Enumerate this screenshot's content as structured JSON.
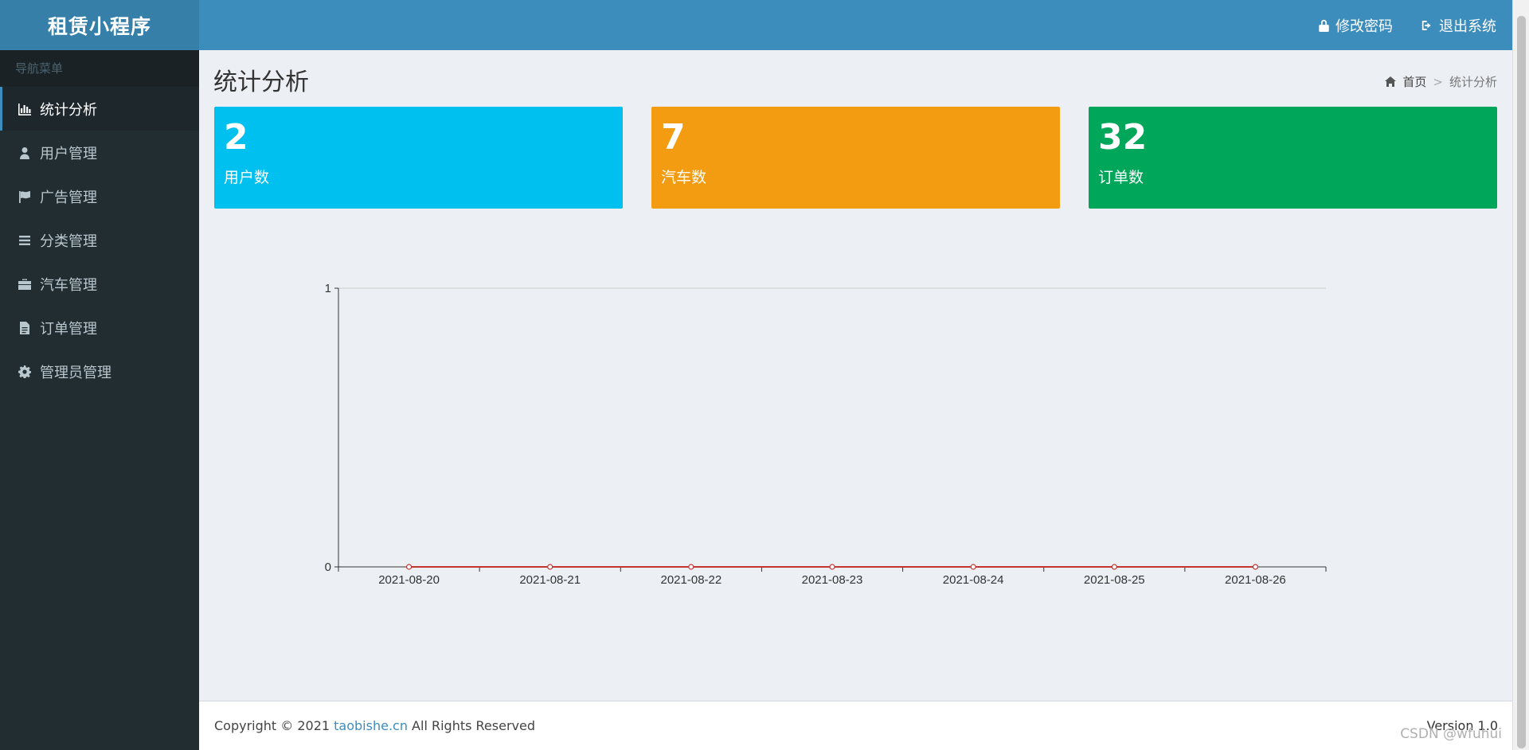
{
  "app": {
    "title": "租赁小程序"
  },
  "header": {
    "change_password": "修改密码",
    "logout": "退出系统"
  },
  "sidebar": {
    "header": "导航菜单",
    "items": [
      {
        "label": "统计分析",
        "icon": "bar-chart-icon",
        "active": true
      },
      {
        "label": "用户管理",
        "icon": "user-icon"
      },
      {
        "label": "广告管理",
        "icon": "flag-icon"
      },
      {
        "label": "分类管理",
        "icon": "list-icon"
      },
      {
        "label": "汽车管理",
        "icon": "briefcase-icon"
      },
      {
        "label": "订单管理",
        "icon": "file-icon"
      },
      {
        "label": "管理员管理",
        "icon": "gear-icon"
      }
    ]
  },
  "page": {
    "title": "统计分析",
    "breadcrumb": {
      "home": "首页",
      "separator": ">",
      "current": "统计分析"
    }
  },
  "stats": [
    {
      "value": "2",
      "label": "用户数",
      "color": "#00c0ef"
    },
    {
      "value": "7",
      "label": "汽车数",
      "color": "#f39c12"
    },
    {
      "value": "32",
      "label": "订单数",
      "color": "#00a65a"
    }
  ],
  "chart_data": {
    "type": "line",
    "categories": [
      "2021-08-20",
      "2021-08-21",
      "2021-08-22",
      "2021-08-23",
      "2021-08-24",
      "2021-08-25",
      "2021-08-26"
    ],
    "values": [
      0,
      0,
      0,
      0,
      0,
      0,
      0
    ],
    "ylim": [
      0,
      1
    ],
    "yticks": [
      "0",
      "1"
    ],
    "line_color": "#c23531"
  },
  "footer": {
    "copyright_prefix": "Copyright © 2021 ",
    "link_text": "taobishe.cn",
    "copyright_suffix": " All Rights Reserved",
    "version": "Version 1.0"
  },
  "watermark": "CSDN @wfuhui"
}
